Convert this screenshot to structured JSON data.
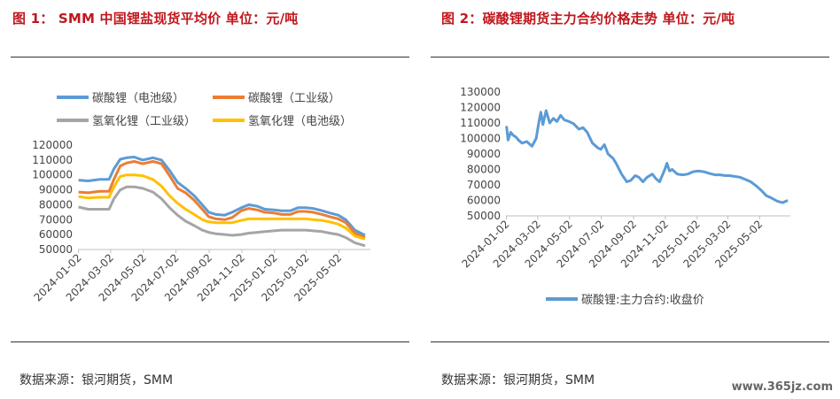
{
  "watermark": "www.365jz.com",
  "chart_data": [
    {
      "type": "line",
      "title": "图 1： SMM 中国锂盐现货平均价    单位：元/吨",
      "source": "数据来源：银河期货，SMM",
      "ylim": [
        50000,
        120000
      ],
      "yticks": [
        "50000",
        "60000",
        "70000",
        "80000",
        "90000",
        "100000",
        "110000",
        "120000"
      ],
      "xlim": [
        "2024-01-01",
        "2025-06-30"
      ],
      "xticks": [
        "2024-01-02",
        "2024-03-02",
        "2024-05-02",
        "2024-07-02",
        "2024-09-02",
        "2024-11-02",
        "2025-01-02",
        "2025-03-02",
        "2025-05-02"
      ],
      "grid": false,
      "legend_position": "top",
      "series": [
        {
          "name": "碳酸锂（电池级）",
          "color": "#5b9bd5",
          "x": [
            "2024-01-02",
            "2024-01-20",
            "2024-02-10",
            "2024-02-28",
            "2024-03-08",
            "2024-03-20",
            "2024-04-01",
            "2024-04-15",
            "2024-05-01",
            "2024-05-20",
            "2024-06-05",
            "2024-06-20",
            "2024-07-05",
            "2024-07-20",
            "2024-08-05",
            "2024-08-20",
            "2024-09-01",
            "2024-09-15",
            "2024-10-01",
            "2024-10-15",
            "2024-11-01",
            "2024-11-15",
            "2024-12-01",
            "2024-12-15",
            "2025-01-01",
            "2025-01-15",
            "2025-02-01",
            "2025-02-15",
            "2025-03-01",
            "2025-03-15",
            "2025-04-01",
            "2025-04-15",
            "2025-05-01",
            "2025-05-15",
            "2025-06-01",
            "2025-06-20"
          ],
          "y": [
            96500,
            96000,
            97000,
            97000,
            104000,
            110500,
            111500,
            112000,
            110000,
            111500,
            110000,
            103000,
            95000,
            91000,
            86000,
            80000,
            75000,
            73500,
            73000,
            75000,
            78000,
            80000,
            79000,
            77000,
            76500,
            76000,
            76000,
            78000,
            78000,
            77500,
            76000,
            74500,
            73000,
            70000,
            63000,
            59500
          ]
        },
        {
          "name": "碳酸锂（工业级）",
          "color": "#ed7d31",
          "x": [
            "2024-01-02",
            "2024-01-20",
            "2024-02-10",
            "2024-02-28",
            "2024-03-08",
            "2024-03-20",
            "2024-04-01",
            "2024-04-15",
            "2024-05-01",
            "2024-05-20",
            "2024-06-05",
            "2024-06-20",
            "2024-07-05",
            "2024-07-20",
            "2024-08-05",
            "2024-08-20",
            "2024-09-01",
            "2024-09-15",
            "2024-10-01",
            "2024-10-15",
            "2024-11-01",
            "2024-11-15",
            "2024-12-01",
            "2024-12-15",
            "2025-01-01",
            "2025-01-15",
            "2025-02-01",
            "2025-02-15",
            "2025-03-01",
            "2025-03-15",
            "2025-04-01",
            "2025-04-15",
            "2025-05-01",
            "2025-05-15",
            "2025-06-01",
            "2025-06-20"
          ],
          "y": [
            88500,
            88000,
            89000,
            89000,
            97000,
            106000,
            108000,
            109000,
            107500,
            109000,
            107500,
            99500,
            91000,
            88000,
            83000,
            77000,
            72000,
            70500,
            70000,
            71500,
            76000,
            77500,
            76500,
            75000,
            74500,
            73500,
            73500,
            75500,
            75500,
            75000,
            73500,
            72000,
            70500,
            68000,
            61000,
            58000
          ]
        },
        {
          "name": "氢氧化锂（工业级）",
          "color": "#a5a5a5",
          "x": [
            "2024-01-02",
            "2024-01-20",
            "2024-02-10",
            "2024-02-28",
            "2024-03-08",
            "2024-03-20",
            "2024-04-01",
            "2024-04-15",
            "2024-05-01",
            "2024-05-20",
            "2024-06-05",
            "2024-06-20",
            "2024-07-05",
            "2024-07-20",
            "2024-08-05",
            "2024-08-20",
            "2024-09-01",
            "2024-09-15",
            "2024-10-01",
            "2024-10-15",
            "2024-11-01",
            "2024-11-15",
            "2024-12-01",
            "2024-12-15",
            "2025-01-01",
            "2025-01-15",
            "2025-02-01",
            "2025-02-15",
            "2025-03-01",
            "2025-03-15",
            "2025-04-01",
            "2025-04-15",
            "2025-05-01",
            "2025-05-15",
            "2025-06-01",
            "2025-06-20"
          ],
          "y": [
            78500,
            77000,
            77000,
            77000,
            84000,
            90000,
            92000,
            92000,
            91000,
            88500,
            84000,
            78000,
            73000,
            69000,
            66000,
            63000,
            61500,
            60500,
            60000,
            59500,
            60000,
            61000,
            61500,
            62000,
            62500,
            63000,
            63000,
            63000,
            63000,
            62500,
            62000,
            61000,
            60000,
            58000,
            54500,
            52500
          ]
        },
        {
          "name": "氢氧化锂（电池级）",
          "color": "#ffc000",
          "x": [
            "2024-01-02",
            "2024-01-20",
            "2024-02-10",
            "2024-02-28",
            "2024-03-08",
            "2024-03-20",
            "2024-04-01",
            "2024-04-15",
            "2024-05-01",
            "2024-05-20",
            "2024-06-05",
            "2024-06-20",
            "2024-07-05",
            "2024-07-20",
            "2024-08-05",
            "2024-08-20",
            "2024-09-01",
            "2024-09-15",
            "2024-10-01",
            "2024-10-15",
            "2024-11-01",
            "2024-11-15",
            "2024-12-01",
            "2024-12-15",
            "2025-01-01",
            "2025-01-15",
            "2025-02-01",
            "2025-02-15",
            "2025-03-01",
            "2025-03-15",
            "2025-04-01",
            "2025-04-15",
            "2025-05-01",
            "2025-05-15",
            "2025-06-01",
            "2025-06-20"
          ],
          "y": [
            85500,
            84500,
            85000,
            85000,
            92000,
            99000,
            100000,
            100000,
            99500,
            97000,
            92500,
            86000,
            81000,
            77000,
            73500,
            70000,
            68500,
            68000,
            68000,
            68000,
            69500,
            70500,
            70500,
            70500,
            70500,
            70500,
            70500,
            70500,
            70500,
            70000,
            69500,
            68500,
            67000,
            64500,
            59000,
            57000
          ]
        }
      ]
    },
    {
      "type": "line",
      "title": "图 2：碳酸锂期货主力合约价格走势    单位：元/吨",
      "source": "数据来源：银河期货，SMM",
      "ylim": [
        50000,
        130000
      ],
      "yticks": [
        "50000",
        "60000",
        "70000",
        "80000",
        "90000",
        "100000",
        "110000",
        "120000",
        "130000"
      ],
      "xlim": [
        "2024-01-01",
        "2025-06-30"
      ],
      "xticks": [
        "2024-01-02",
        "2024-03-02",
        "2024-05-02",
        "2024-07-02",
        "2024-09-02",
        "2024-11-02",
        "2025-01-02",
        "2025-03-02",
        "2025-05-02"
      ],
      "grid": false,
      "legend_position": "bottom",
      "series": [
        {
          "name": "碳酸锂:主力合约:收盘价",
          "color": "#5b9bd5",
          "x": [
            "2024-01-02",
            "2024-01-05",
            "2024-01-10",
            "2024-01-15",
            "2024-01-20",
            "2024-01-25",
            "2024-02-01",
            "2024-02-10",
            "2024-02-20",
            "2024-02-28",
            "2024-03-05",
            "2024-03-08",
            "2024-03-12",
            "2024-03-18",
            "2024-03-25",
            "2024-04-01",
            "2024-04-08",
            "2024-04-15",
            "2024-04-22",
            "2024-05-01",
            "2024-05-10",
            "2024-05-20",
            "2024-05-28",
            "2024-06-05",
            "2024-06-15",
            "2024-06-25",
            "2024-07-01",
            "2024-07-08",
            "2024-07-15",
            "2024-07-25",
            "2024-08-01",
            "2024-08-10",
            "2024-08-20",
            "2024-08-28",
            "2024-09-05",
            "2024-09-12",
            "2024-09-20",
            "2024-09-28",
            "2024-10-08",
            "2024-10-15",
            "2024-10-22",
            "2024-11-01",
            "2024-11-05",
            "2024-11-10",
            "2024-11-15",
            "2024-11-25",
            "2024-12-05",
            "2024-12-15",
            "2024-12-25",
            "2025-01-05",
            "2025-01-15",
            "2025-01-25",
            "2025-02-05",
            "2025-02-15",
            "2025-02-25",
            "2025-03-05",
            "2025-03-15",
            "2025-03-25",
            "2025-04-05",
            "2025-04-15",
            "2025-04-25",
            "2025-05-05",
            "2025-05-15",
            "2025-05-25",
            "2025-06-05",
            "2025-06-15",
            "2025-06-25"
          ],
          "y": [
            108000,
            99000,
            104000,
            102000,
            101000,
            99000,
            97000,
            98000,
            95000,
            100000,
            112000,
            117000,
            109000,
            118000,
            110000,
            113000,
            111000,
            115000,
            112000,
            111000,
            109500,
            106000,
            107000,
            104000,
            97000,
            94000,
            93000,
            96000,
            90000,
            87000,
            83000,
            77000,
            72000,
            73000,
            76000,
            75000,
            72000,
            75000,
            77000,
            74000,
            72000,
            80000,
            84000,
            79000,
            80000,
            77000,
            76500,
            77000,
            78500,
            79000,
            78500,
            77500,
            76500,
            76500,
            76000,
            76000,
            75500,
            75000,
            73500,
            72000,
            69500,
            66500,
            63000,
            61500,
            59500,
            58500,
            60000
          ]
        }
      ]
    },
    {
      "type": "meta",
      "chart2_legend": "碳酸锂:主力合约:收盘价"
    }
  ]
}
